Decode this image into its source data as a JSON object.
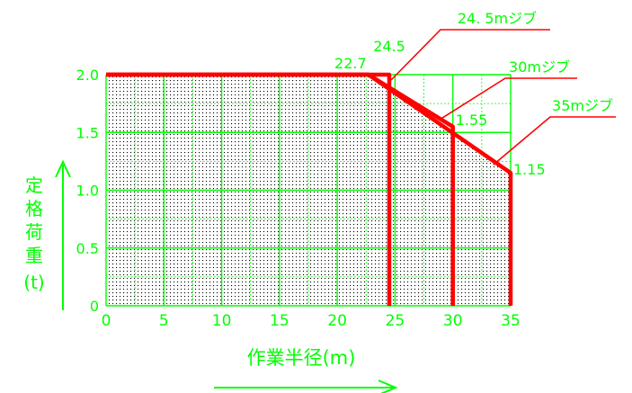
{
  "chart_data": {
    "type": "line",
    "xlabel": "作業半径(m)",
    "ylabel": [
      "定",
      "格",
      "荷",
      "重",
      "(t)"
    ],
    "xlim": [
      0,
      35
    ],
    "ylim": [
      0,
      2.0
    ],
    "x_ticks": [
      "0",
      "5",
      "10",
      "15",
      "20",
      "25",
      "30",
      "35"
    ],
    "y_ticks": [
      "0",
      "0.5",
      "1.0",
      "1.5",
      "2.0"
    ],
    "grid": true,
    "series": [
      {
        "name": "24.5mジブ",
        "x": [
          0,
          24.5,
          24.5
        ],
        "y": [
          2.0,
          2.0,
          0
        ]
      },
      {
        "name": "30mジブ",
        "x": [
          0,
          22.7,
          30,
          30
        ],
        "y": [
          2.0,
          2.0,
          1.55,
          0
        ]
      },
      {
        "name": "35mジブ",
        "x": [
          0,
          22.7,
          35,
          35
        ],
        "y": [
          2.0,
          2.0,
          1.15,
          0
        ]
      }
    ],
    "annotations": [
      {
        "text": "24.5",
        "x": 24.5,
        "y": 2.0
      },
      {
        "text": "22.7",
        "x": 22.7,
        "y": 2.0
      },
      {
        "text": "1.55",
        "x": 30,
        "y": 1.55
      },
      {
        "text": "1.15",
        "x": 35,
        "y": 1.15
      }
    ],
    "legend_labels": [
      "24. 5mジブ",
      "30mジブ",
      "35mジブ"
    ],
    "colors": {
      "grid": "#00ff00",
      "text": "#00ff00",
      "curve": "#ff0000",
      "dots": "#000000"
    }
  }
}
